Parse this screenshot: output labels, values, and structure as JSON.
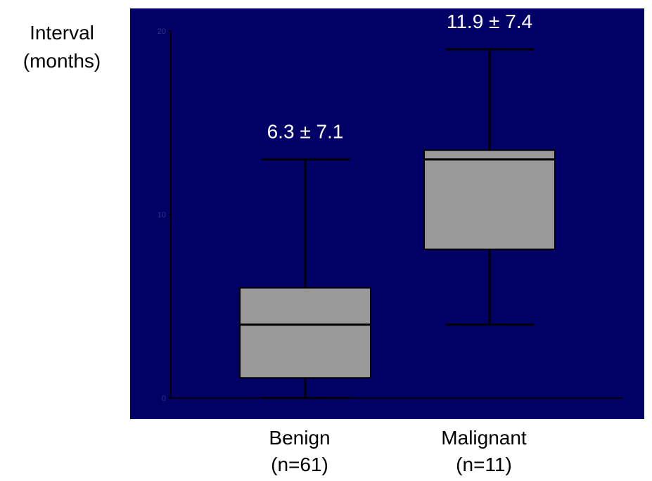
{
  "chart_data": {
    "type": "boxplot",
    "ylabel": [
      "Interval",
      "(months)"
    ],
    "ylim": [
      0,
      20
    ],
    "yticks": [
      {
        "value": 0,
        "label": "0"
      },
      {
        "value": 10,
        "label": "10"
      },
      {
        "value": 20,
        "label": "20"
      }
    ],
    "categories": [
      {
        "name": "Benign",
        "sub": "(n=61)"
      },
      {
        "name": "Malignant",
        "sub": "(n=11)"
      }
    ],
    "boxes": [
      {
        "category": "Benign",
        "whisker_low": 0,
        "q1": 1.1,
        "median": 4.0,
        "q3": 6.0,
        "whisker_high": 13.0,
        "annotation": "6.3 ± 7.1"
      },
      {
        "category": "Malignant",
        "whisker_low": 4.0,
        "q1": 8.1,
        "median": 13.0,
        "q3": 13.5,
        "whisker_high": 19.0,
        "annotation": "11.9 ± 7.4"
      }
    ],
    "colors": {
      "plot_background": "#000066",
      "box_fill": "#999999",
      "lines": "#000000",
      "annotation_text": "#ffffff",
      "tick_text": "#33338a"
    }
  }
}
